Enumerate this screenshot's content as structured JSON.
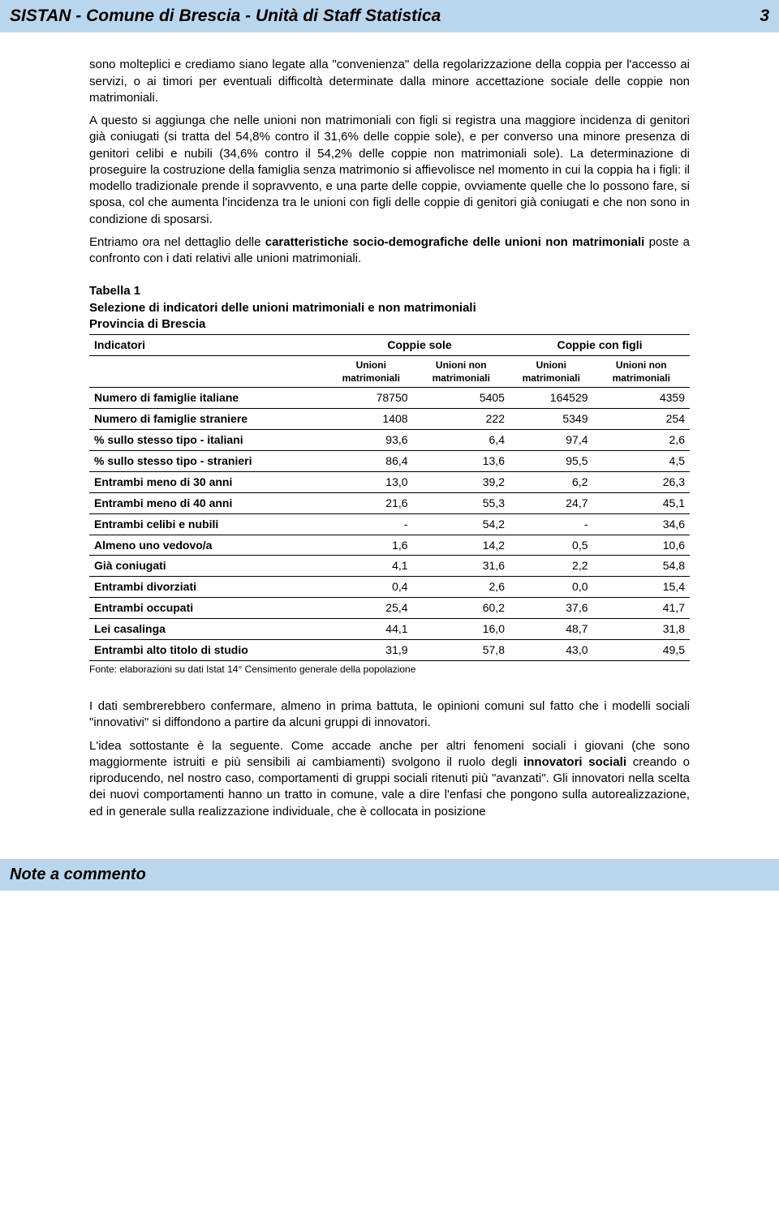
{
  "colors": {
    "header_bg": "#bad6ec",
    "text": "#000000",
    "page_bg": "#ffffff",
    "border": "#000000"
  },
  "header": {
    "title": "SISTAN - Comune di Brescia - Unità di Staff Statistica",
    "page_number": "3"
  },
  "body": {
    "p1": "sono molteplici e crediamo siano legate alla \"convenienza\" della regolarizzazione della coppia per l'accesso ai servizi, o ai timori per eventuali difficoltà determinate dalla minore accettazione sociale delle coppie non matrimoniali.",
    "p2": "A questo si aggiunga che nelle unioni non matrimoniali con figli si registra una maggiore incidenza di genitori già coniugati (si tratta del 54,8% contro il 31,6% delle coppie sole), e per converso una minore presenza di genitori celibi e nubili (34,6% contro il 54,2% delle coppie non matrimoniali sole). La determinazione di proseguire la costruzione della famiglia senza matrimonio si affievolisce nel momento in cui la coppia ha i figli: il modello tradizionale prende il sopravvento, e una parte delle coppie, ovviamente quelle che lo possono fare, si sposa, col che aumenta l'incidenza tra le unioni con figli delle coppie di genitori già coniugati e che non sono in condizione di sposarsi.",
    "p3a": "Entriamo ora nel dettaglio delle ",
    "p3b": "caratteristiche socio-demografiche delle unioni non matrimoniali",
    "p3c": " poste a confronto con i dati relativi alle unioni matrimoniali.",
    "p4": "I dati sembrerebbero confermare, almeno in prima battuta, le opinioni comuni sul fatto che i modelli sociali \"innovativi\" si diffondono a partire da alcuni gruppi di innovatori.",
    "p5a": "L'idea sottostante è la seguente. Come accade anche per altri fenomeni sociali i giovani (che sono maggiormente istruiti e più sensibili ai cambiamenti) svolgono il ruolo degli ",
    "p5b": "innovatori sociali",
    "p5c": " creando o riproducendo, nel nostro caso, comportamenti di gruppi sociali ritenuti più \"avanzati\". Gli innovatori nella scelta dei nuovi comportamenti hanno un tratto in comune, vale a dire l'enfasi che pongono sulla autorealizzazione, ed in generale sulla realizzazione individuale, che è collocata in posizione"
  },
  "table": {
    "caption": "Tabella 1",
    "title": "Selezione di indicatori delle unioni matrimoniali e non matrimoniali",
    "subtitle": "Provincia di Brescia",
    "indic_label": "Indicatori",
    "group1": "Coppie sole",
    "group2": "Coppie con figli",
    "sub1": "Unioni matrimoniali",
    "sub2": "Unioni non matrimoniali",
    "sub3": "Unioni matrimoniali",
    "sub4": "Unioni non matrimoniali",
    "rows": [
      {
        "label": "Numero di famiglie italiane",
        "c1": "78750",
        "c2": "5405",
        "c3": "164529",
        "c4": "4359"
      },
      {
        "label": "Numero di famiglie straniere",
        "c1": "1408",
        "c2": "222",
        "c3": "5349",
        "c4": "254"
      },
      {
        "label": "% sullo stesso tipo - italiani",
        "c1": "93,6",
        "c2": "6,4",
        "c3": "97,4",
        "c4": "2,6"
      },
      {
        "label": "% sullo stesso tipo - stranieri",
        "c1": "86,4",
        "c2": "13,6",
        "c3": "95,5",
        "c4": "4,5"
      },
      {
        "label": "Entrambi meno di 30 anni",
        "c1": "13,0",
        "c2": "39,2",
        "c3": "6,2",
        "c4": "26,3"
      },
      {
        "label": "Entrambi meno di 40 anni",
        "c1": "21,6",
        "c2": "55,3",
        "c3": "24,7",
        "c4": "45,1"
      },
      {
        "label": "Entrambi celibi e nubili",
        "c1": "-",
        "c2": "54,2",
        "c3": "-",
        "c4": "34,6"
      },
      {
        "label": "Almeno uno vedovo/a",
        "c1": "1,6",
        "c2": "14,2",
        "c3": "0,5",
        "c4": "10,6"
      },
      {
        "label": "Già coniugati",
        "c1": "4,1",
        "c2": "31,6",
        "c3": "2,2",
        "c4": "54,8"
      },
      {
        "label": "Entrambi divorziati",
        "c1": "0,4",
        "c2": "2,6",
        "c3": "0,0",
        "c4": "15,4"
      },
      {
        "label": "Entrambi occupati",
        "c1": "25,4",
        "c2": "60,2",
        "c3": "37,6",
        "c4": "41,7"
      },
      {
        "label": "Lei casalinga",
        "c1": "44,1",
        "c2": "16,0",
        "c3": "48,7",
        "c4": "31,8"
      },
      {
        "label": "Entrambi alto titolo di studio",
        "c1": "31,9",
        "c2": "57,8",
        "c3": "43,0",
        "c4": "49,5"
      }
    ],
    "source": "Fonte: elaborazioni su dati Istat 14° Censimento generale della popolazione"
  },
  "footer": {
    "text": "Note a commento"
  }
}
